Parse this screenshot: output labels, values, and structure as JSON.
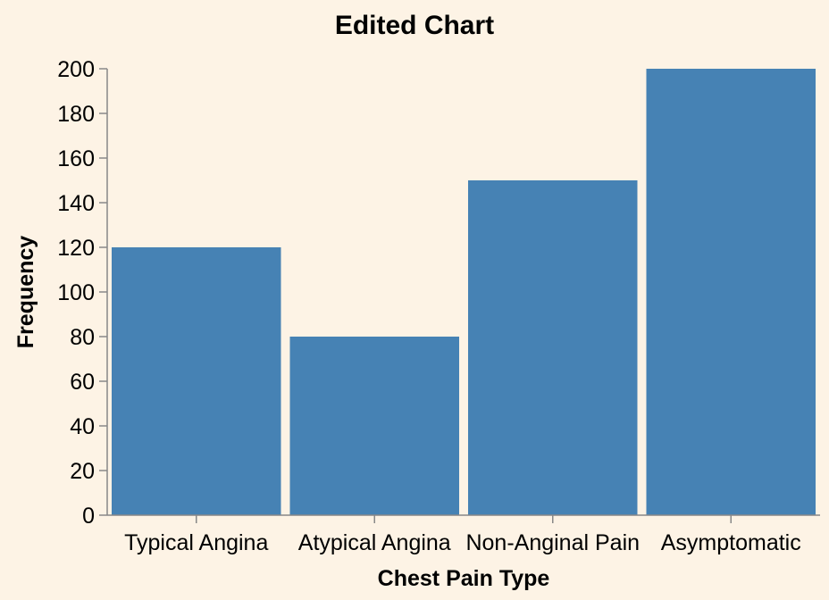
{
  "chart_data": {
    "type": "bar",
    "title": "Edited Chart",
    "xlabel": "Chest Pain Type",
    "ylabel": "Frequency",
    "categories": [
      "Typical Angina",
      "Atypical Angina",
      "Non-Anginal Pain",
      "Asymptomatic"
    ],
    "values": [
      120,
      80,
      150,
      200
    ],
    "ylim": [
      0,
      200
    ],
    "yticks": [
      "0",
      "20",
      "40",
      "60",
      "80",
      "100",
      "120",
      "140",
      "160",
      "180",
      "200"
    ],
    "grid": false,
    "bar_color": "#4682b4",
    "background": "#fdf3e5"
  }
}
